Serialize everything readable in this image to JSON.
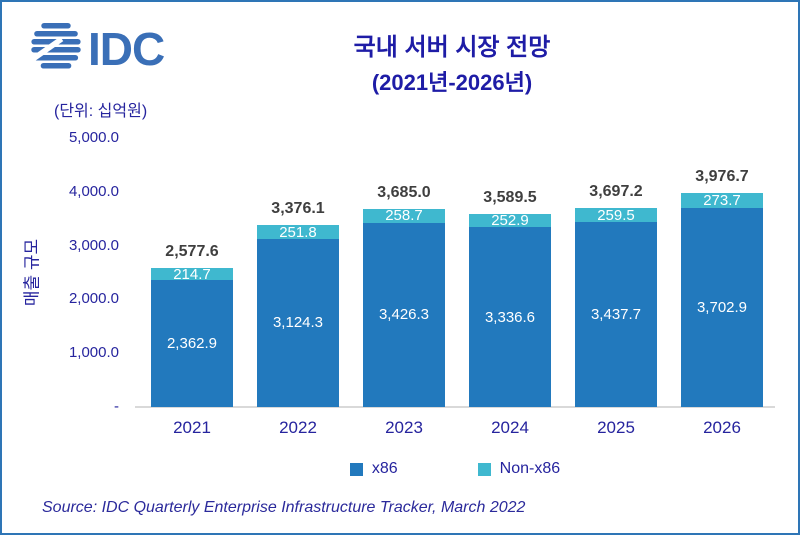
{
  "logo": {
    "text": "IDC",
    "color": "#3A6FB7",
    "icon": "globe-stripes-icon"
  },
  "header": {
    "title_line1": "국내 서버 시장 전망",
    "title_line2": "(2021년-2026년)",
    "units_label": "(단위: 십억원)"
  },
  "chart_data": {
    "type": "bar",
    "stacked": true,
    "categories": [
      "2021",
      "2022",
      "2023",
      "2024",
      "2025",
      "2026"
    ],
    "series": [
      {
        "name": "x86",
        "color": "#2279BD",
        "values": [
          2362.9,
          3124.3,
          3426.3,
          3336.6,
          3437.7,
          3702.9
        ],
        "labels": [
          "2,362.9",
          "3,124.3",
          "3,426.3",
          "3,336.6",
          "3,437.7",
          "3,702.9"
        ]
      },
      {
        "name": "Non-x86",
        "color": "#3FB8CF",
        "values": [
          214.7,
          251.8,
          258.7,
          252.9,
          259.5,
          273.7
        ],
        "labels": [
          "214.7",
          "251.8",
          "258.7",
          "252.9",
          "259.5",
          "273.7"
        ]
      }
    ],
    "totals": [
      2577.6,
      3376.1,
      3685.0,
      3589.5,
      3697.2,
      3976.7
    ],
    "total_labels": [
      "2,577.6",
      "3,376.1",
      "3,685.0",
      "3,589.5",
      "3,697.2",
      "3,976.7"
    ],
    "title": "국내 서버 시장 전망 (2021년-2026년)",
    "xlabel": "",
    "ylabel": "매출 규모",
    "ylim": [
      0,
      5000
    ],
    "yticks": [
      5000,
      4000,
      3000,
      2000,
      1000,
      0
    ],
    "ytick_labels": [
      "5,000.0",
      "4,000.0",
      "3,000.0",
      "2,000.0",
      "1,000.0",
      "-"
    ],
    "grid": false,
    "legend_position": "bottom"
  },
  "footer": {
    "source": "Source: IDC Quarterly Enterprise Infrastructure Tracker, March 2022"
  },
  "colors": {
    "frame_border": "#2E75B6",
    "navy_text": "#26249E",
    "title_text": "#1E1CA6",
    "total_text": "#3F3F3F",
    "axis_line": "#D9D9D9"
  }
}
